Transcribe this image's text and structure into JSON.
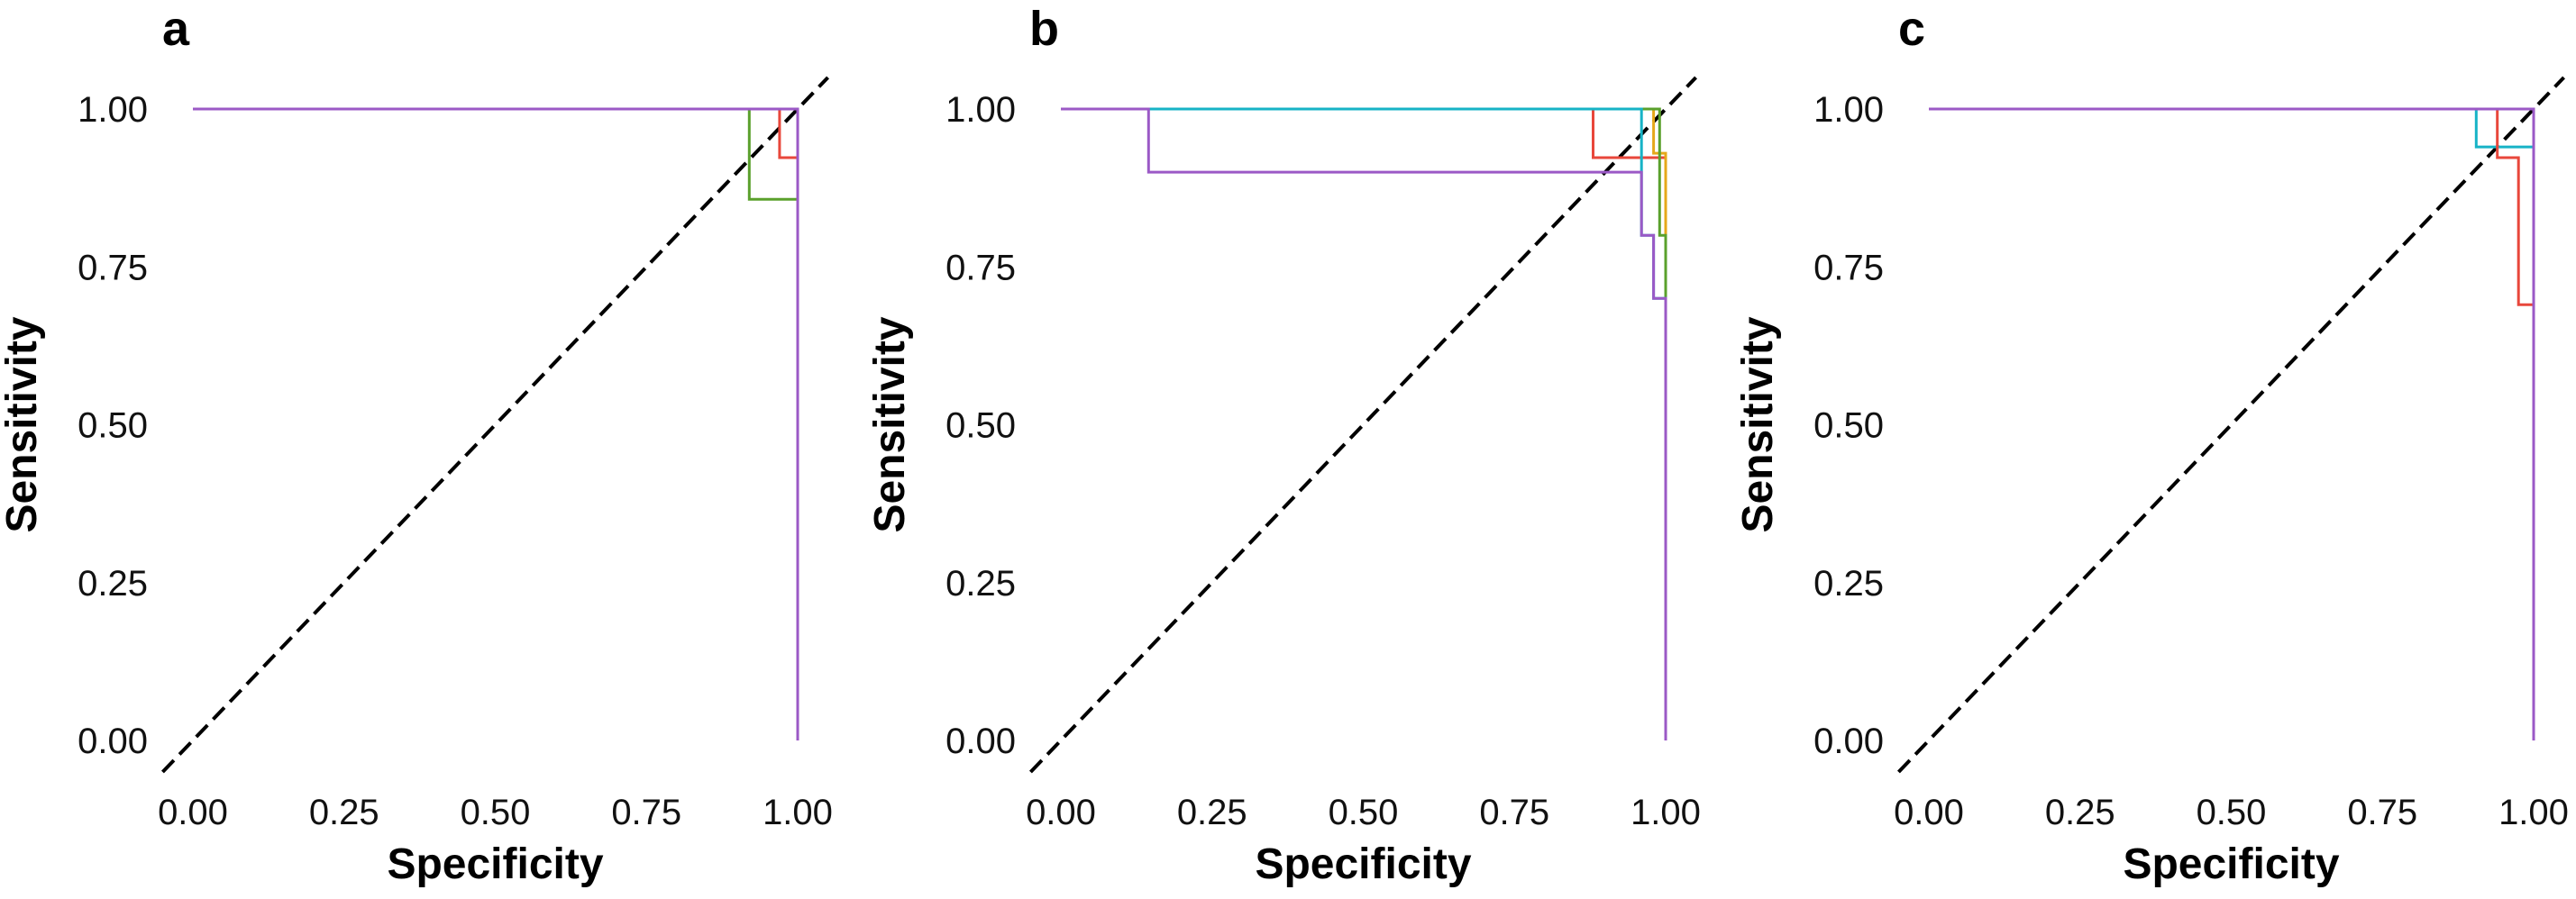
{
  "figure": {
    "panels": [
      {
        "tag": "a",
        "xlabel": "Specificity",
        "ylabel": "Sensitivity"
      },
      {
        "tag": "b",
        "xlabel": "Specificity",
        "ylabel": "Sensitivity"
      },
      {
        "tag": "c",
        "xlabel": "Specificity",
        "ylabel": "Sensitivity"
      }
    ]
  },
  "colors": {
    "purple": "#9b59c6",
    "green": "#5aa02c",
    "red": "#e8473b",
    "cyan": "#17b3c6",
    "yellow": "#e5a81a",
    "diagonal": "#000000"
  },
  "chart_data": [
    {
      "type": "line",
      "panel": "a",
      "title": "",
      "xlabel": "Specificity",
      "ylabel": "Sensitivity",
      "xlim": [
        0,
        1
      ],
      "ylim": [
        0,
        1
      ],
      "xticks": [
        "0.00",
        "0.25",
        "0.50",
        "0.75",
        "1.00"
      ],
      "yticks": [
        "0.00",
        "0.25",
        "0.50",
        "0.75",
        "1.00"
      ],
      "reference_line": "dashed diagonal",
      "series": [
        {
          "name": "green",
          "color": "#5aa02c",
          "points": [
            [
              0,
              1
            ],
            [
              0.92,
              1
            ],
            [
              0.92,
              0.857
            ],
            [
              1,
              0.857
            ],
            [
              1,
              0
            ]
          ]
        },
        {
          "name": "red",
          "color": "#e8473b",
          "points": [
            [
              0,
              1
            ],
            [
              0.97,
              1
            ],
            [
              0.97,
              0.923
            ],
            [
              1,
              0.923
            ],
            [
              1,
              0
            ]
          ]
        },
        {
          "name": "purple",
          "color": "#9b59c6",
          "points": [
            [
              0,
              1
            ],
            [
              1,
              1
            ],
            [
              1,
              0
            ]
          ]
        }
      ]
    },
    {
      "type": "line",
      "panel": "b",
      "title": "",
      "xlabel": "Specificity",
      "ylabel": "Sensitivity",
      "xlim": [
        0,
        1
      ],
      "ylim": [
        0,
        1
      ],
      "xticks": [
        "0.00",
        "0.25",
        "0.50",
        "0.75",
        "1.00"
      ],
      "yticks": [
        "0.00",
        "0.25",
        "0.50",
        "0.75",
        "1.00"
      ],
      "reference_line": "dashed diagonal",
      "series": [
        {
          "name": "red",
          "color": "#e8473b",
          "points": [
            [
              0,
              1
            ],
            [
              0.88,
              1
            ],
            [
              0.88,
              0.923
            ],
            [
              1,
              0.923
            ],
            [
              1,
              0
            ]
          ]
        },
        {
          "name": "yellow",
          "color": "#e5a81a",
          "points": [
            [
              0,
              1
            ],
            [
              0.98,
              1
            ],
            [
              0.98,
              0.93
            ],
            [
              1,
              0.93
            ],
            [
              1,
              0
            ]
          ]
        },
        {
          "name": "green",
          "color": "#5aa02c",
          "points": [
            [
              0,
              1
            ],
            [
              0.99,
              1
            ],
            [
              0.99,
              0.8
            ],
            [
              1,
              0.8
            ],
            [
              1,
              0
            ]
          ]
        },
        {
          "name": "cyan",
          "color": "#17b3c6",
          "points": [
            [
              0,
              1
            ],
            [
              0.96,
              1
            ],
            [
              0.96,
              0.8
            ],
            [
              0.98,
              0.8
            ],
            [
              0.98,
              0.7
            ],
            [
              1,
              0.7
            ],
            [
              1,
              0
            ]
          ]
        },
        {
          "name": "purple",
          "color": "#9b59c6",
          "points": [
            [
              0,
              1
            ],
            [
              0.145,
              1
            ],
            [
              0.145,
              0.9
            ],
            [
              0.96,
              0.9
            ],
            [
              0.96,
              0.8
            ],
            [
              0.98,
              0.8
            ],
            [
              0.98,
              0.7
            ],
            [
              1,
              0.7
            ],
            [
              1,
              0
            ]
          ]
        }
      ]
    },
    {
      "type": "line",
      "panel": "c",
      "title": "",
      "xlabel": "Specificity",
      "ylabel": "Sensitivity",
      "xlim": [
        0,
        1
      ],
      "ylim": [
        0,
        1
      ],
      "xticks": [
        "0.00",
        "0.25",
        "0.50",
        "0.75",
        "1.00"
      ],
      "yticks": [
        "0.00",
        "0.25",
        "0.50",
        "0.75",
        "1.00"
      ],
      "reference_line": "dashed diagonal",
      "series": [
        {
          "name": "cyan",
          "color": "#17b3c6",
          "points": [
            [
              0,
              1
            ],
            [
              0.905,
              1
            ],
            [
              0.905,
              0.94
            ],
            [
              1,
              0.94
            ],
            [
              1,
              0
            ]
          ]
        },
        {
          "name": "red",
          "color": "#e8473b",
          "points": [
            [
              0,
              1
            ],
            [
              0.94,
              1
            ],
            [
              0.94,
              0.923
            ],
            [
              0.975,
              0.923
            ],
            [
              0.975,
              0.69
            ],
            [
              1,
              0.69
            ],
            [
              1,
              0
            ]
          ]
        },
        {
          "name": "purple",
          "color": "#9b59c6",
          "points": [
            [
              0,
              1
            ],
            [
              1,
              1
            ],
            [
              1,
              0
            ]
          ]
        }
      ]
    }
  ]
}
